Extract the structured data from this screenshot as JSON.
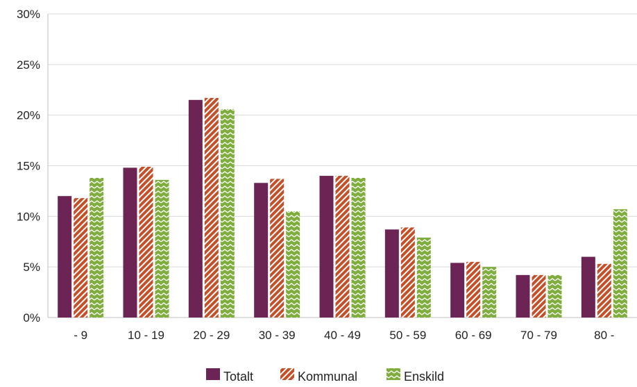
{
  "chart_data": {
    "type": "bar",
    "categories": [
      "- 9",
      "10 - 19",
      "20 - 29",
      "30 - 39",
      "40 - 49",
      "50 - 59",
      "60 - 69",
      "70 - 79",
      "80 -"
    ],
    "series": [
      {
        "name": "Totalt",
        "values": [
          12.0,
          14.8,
          21.5,
          13.3,
          14.0,
          8.7,
          5.4,
          4.2,
          6.0
        ],
        "color": "#6b2454",
        "pattern": "solid"
      },
      {
        "name": "Kommunal",
        "values": [
          11.8,
          14.9,
          21.7,
          13.7,
          14.0,
          8.9,
          5.5,
          4.2,
          5.3
        ],
        "color": "#c4502a",
        "pattern": "diagonal-stripes"
      },
      {
        "name": "Enskild",
        "values": [
          13.8,
          13.6,
          20.6,
          10.5,
          13.8,
          7.9,
          5.0,
          4.2,
          10.7
        ],
        "color": "#7fae3e",
        "pattern": "zigzag"
      }
    ],
    "y_ticks": [
      "0%",
      "5%",
      "10%",
      "15%",
      "20%",
      "25%",
      "30%"
    ],
    "ylim": [
      0,
      30
    ],
    "title": "",
    "xlabel": "",
    "ylabel": "",
    "grid": true,
    "legend_position": "bottom"
  }
}
